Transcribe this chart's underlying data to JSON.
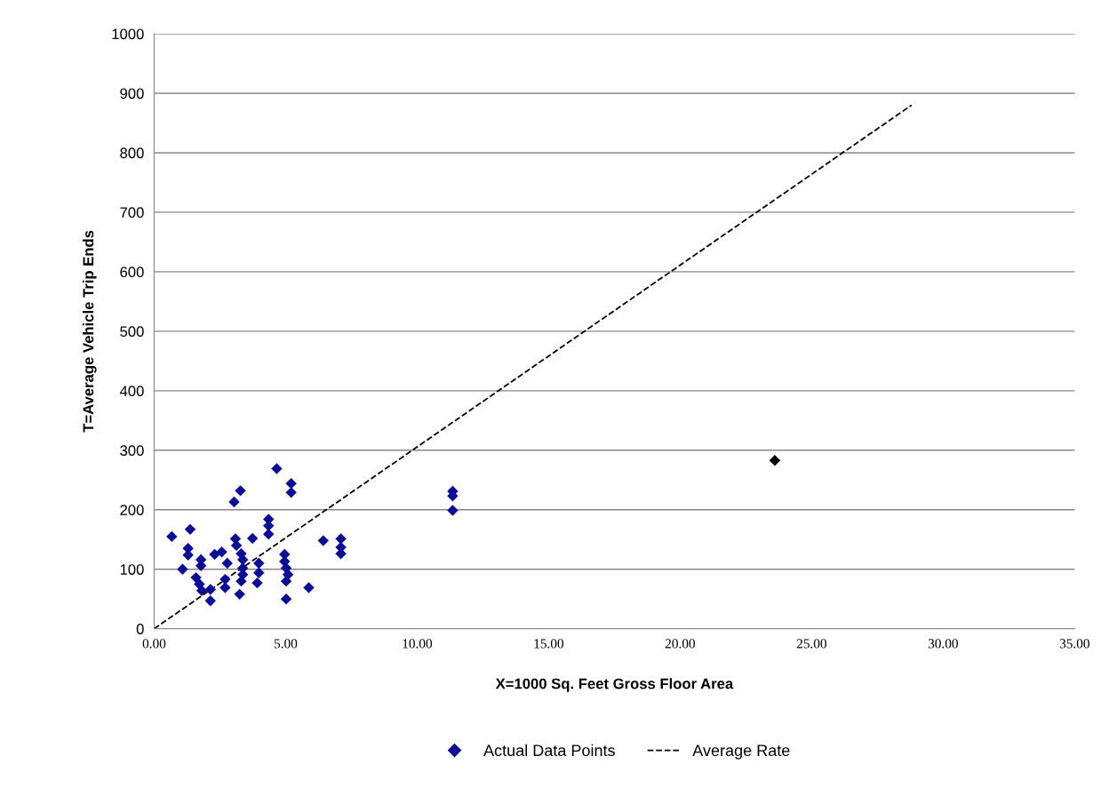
{
  "chart_data": {
    "type": "scatter",
    "xlabel": "X=1000 Sq. Feet Gross Floor Area",
    "ylabel": "T=Average Vehicle Trip Ends",
    "xlim": [
      0,
      35
    ],
    "ylim": [
      0,
      1000
    ],
    "xticks": [
      {
        "value": 0,
        "label": "0.00"
      },
      {
        "value": 5,
        "label": "5.00"
      },
      {
        "value": 10,
        "label": "10.00"
      },
      {
        "value": 15,
        "label": "15.00"
      },
      {
        "value": 20,
        "label": "20.00"
      },
      {
        "value": 25,
        "label": "25.00"
      },
      {
        "value": 30,
        "label": "30.00"
      },
      {
        "value": 35,
        "label": "35.00"
      }
    ],
    "yticks": [
      0,
      100,
      200,
      300,
      400,
      500,
      600,
      700,
      800,
      900,
      1000
    ],
    "grid": "y",
    "legend": "bottom",
    "series": [
      {
        "name": "Actual Data Points",
        "marker": "diamond",
        "color": "#0c0c94",
        "x": [
          0.67,
          1.37,
          1.29,
          1.29,
          1.08,
          1.78,
          1.78,
          1.59,
          1.72,
          1.81,
          2.14,
          2.14,
          2.3,
          2.57,
          2.78,
          2.7,
          2.7,
          3.04,
          3.28,
          3.09,
          3.13,
          3.31,
          3.37,
          3.37,
          3.37,
          3.31,
          3.25,
          3.74,
          3.98,
          3.98,
          3.92,
          4.35,
          4.35,
          4.35,
          4.66,
          5.21,
          5.21,
          4.96,
          4.96,
          5.02,
          5.09,
          5.02,
          5.02,
          5.88,
          6.43,
          7.1,
          7.1,
          7.1,
          11.35,
          11.35,
          11.35,
          23.6
        ],
        "values": [
          155,
          167,
          135,
          124,
          100,
          116,
          106,
          86,
          75,
          64,
          66,
          47,
          125,
          129,
          110,
          83,
          69,
          213,
          232,
          151,
          140,
          126,
          116,
          102,
          91,
          80,
          58,
          152,
          110,
          94,
          77,
          184,
          173,
          159,
          269,
          244,
          229,
          125,
          113,
          102,
          91,
          80,
          50,
          69,
          148,
          151,
          137,
          126,
          231,
          223,
          199,
          283
        ],
        "colors": [
          "#0c0c94",
          "#0c0c94",
          "#0c0c94",
          "#0c0c94",
          "#0c0c94",
          "#0c0c94",
          "#0c0c94",
          "#0c0c94",
          "#0c0c94",
          "#0c0c94",
          "#0c0c94",
          "#0c0c94",
          "#0c0c94",
          "#0c0c94",
          "#0c0c94",
          "#0c0c94",
          "#0c0c94",
          "#0c0c94",
          "#0c0c94",
          "#0c0c94",
          "#0c0c94",
          "#0c0c94",
          "#0c0c94",
          "#0c0c94",
          "#0c0c94",
          "#0c0c94",
          "#0c0c94",
          "#0c0c94",
          "#0c0c94",
          "#0c0c94",
          "#0c0c94",
          "#0c0c94",
          "#0c0c94",
          "#0c0c94",
          "#0c0c94",
          "#0c0c94",
          "#0c0c94",
          "#0c0c94",
          "#0c0c94",
          "#0c0c94",
          "#0c0c94",
          "#0c0c94",
          "#0c0c94",
          "#0c0c94",
          "#0c0c94",
          "#0c0c94",
          "#0c0c94",
          "#0c0c94",
          "#0c0c94",
          "#0c0c94",
          "#0c0c94",
          "#000000"
        ]
      },
      {
        "name": "Average Rate",
        "type": "line",
        "marker": "none",
        "line_style": "dashed",
        "color": "#000000",
        "x": [
          0,
          28.8
        ],
        "values": [
          0,
          880
        ]
      }
    ]
  }
}
